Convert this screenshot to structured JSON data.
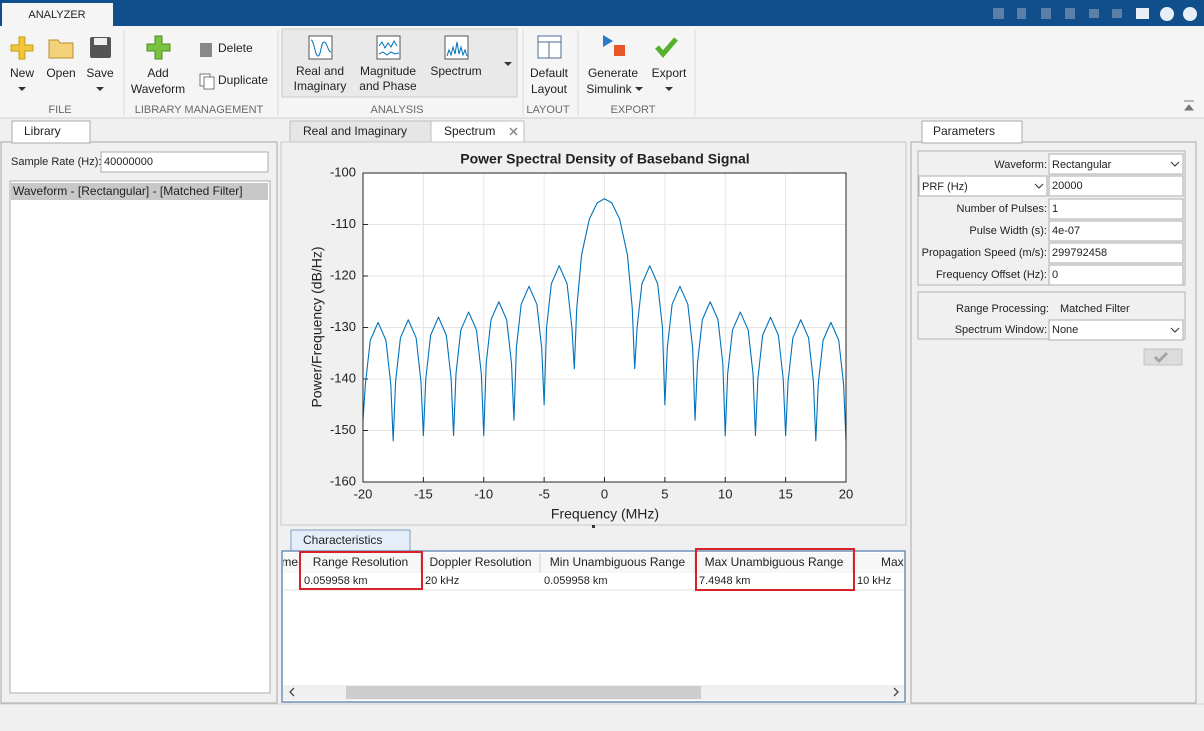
{
  "toolstrip": {
    "tab": "ANALYZER",
    "file": {
      "label": "FILE",
      "new": "New",
      "open": "Open",
      "save": "Save"
    },
    "library_management": {
      "label": "LIBRARY MANAGEMENT",
      "add_waveform": [
        "Add",
        "Waveform"
      ],
      "delete": "Delete",
      "duplicate": "Duplicate"
    },
    "analysis": {
      "label": "ANALYSIS",
      "real_imag": [
        "Real and",
        "Imaginary"
      ],
      "mag_phase": [
        "Magnitude",
        "and Phase"
      ],
      "spectrum": "Spectrum"
    },
    "layout": {
      "label": "LAYOUT",
      "default_layout": [
        "Default",
        "Layout"
      ]
    },
    "export": {
      "label": "EXPORT",
      "generate_simulink": [
        "Generate",
        "Simulink"
      ],
      "export": "Export"
    }
  },
  "library": {
    "tab": "Library",
    "sample_rate_label": "Sample Rate (Hz):",
    "sample_rate": "40000000",
    "items": [
      "Waveform - [Rectangular] - [Matched Filter]"
    ]
  },
  "plot_tabs": [
    "Real and Imaginary",
    "Spectrum"
  ],
  "chart_data": {
    "type": "line",
    "title": "Power Spectral Density of Baseband Signal",
    "x_label": "Frequency (MHz)",
    "y_label": "Power/Frequency (dB/Hz)",
    "x": [
      -20,
      -19.8,
      -19.4,
      -18.75,
      -18.1,
      -17.7,
      -17.5,
      -17.3,
      -16.9,
      -16.25,
      -15.6,
      -15.2,
      -15,
      -14.8,
      -14.4,
      -13.75,
      -13.1,
      -12.7,
      -12.5,
      -12.3,
      -11.9,
      -11.25,
      -10.6,
      -10.2,
      -10,
      -9.8,
      -9.4,
      -8.75,
      -8.1,
      -7.7,
      -7.5,
      -7.3,
      -6.9,
      -6.25,
      -5.6,
      -5.2,
      -5,
      -4.8,
      -4.4,
      -3.75,
      -3.1,
      -2.7,
      -2.5,
      -2.3,
      -1.9,
      -1.25,
      -0.6,
      0,
      0.6,
      1.25,
      1.9,
      2.3,
      2.5,
      2.7,
      3.1,
      3.75,
      4.4,
      4.8,
      5,
      5.2,
      5.6,
      6.25,
      6.9,
      7.3,
      7.5,
      7.7,
      8.1,
      8.75,
      9.4,
      9.8,
      10,
      10.2,
      10.6,
      11.25,
      11.9,
      12.3,
      12.5,
      12.7,
      13.1,
      13.75,
      14.4,
      14.8,
      15,
      15.2,
      15.6,
      16.25,
      16.9,
      17.3,
      17.5,
      17.7,
      18.1,
      18.75,
      19.4,
      19.8,
      20
    ],
    "values": [
      -148,
      -141,
      -132.5,
      -129,
      -132.5,
      -141,
      -152,
      -140.5,
      -132,
      -128.5,
      -132,
      -140.5,
      -151,
      -140,
      -131.5,
      -128,
      -131.5,
      -140,
      -151,
      -139,
      -130.5,
      -127,
      -130.5,
      -139,
      -151,
      -137,
      -128.5,
      -125,
      -128.5,
      -137,
      -148,
      -134,
      -125.5,
      -122,
      -125.5,
      -134,
      -145,
      -130,
      -121.5,
      -118,
      -121.5,
      -130,
      -138,
      -126.3,
      -115.9,
      -108.9,
      -105.8,
      -105,
      -105.8,
      -108.9,
      -115.9,
      -126.3,
      -138,
      -130,
      -121.5,
      -118,
      -121.5,
      -130,
      -145,
      -134,
      -125.5,
      -122,
      -125.5,
      -134,
      -148,
      -137,
      -128.5,
      -125,
      -128.5,
      -137,
      -151,
      -139,
      -130.5,
      -127,
      -130.5,
      -139,
      -151,
      -140,
      -131.5,
      -128,
      -131.5,
      -140,
      -151,
      -140.5,
      -132,
      -128.5,
      -132,
      -140.5,
      -152,
      -141,
      -132.5,
      -129,
      -132.5,
      -141,
      -152
    ],
    "color": "#0072bd",
    "xlim": [
      -20,
      20
    ],
    "ylim": [
      -160,
      -100
    ],
    "xticks": [
      -20,
      -15,
      -10,
      -5,
      0,
      5,
      10,
      15,
      20
    ],
    "yticks": [
      -160,
      -150,
      -140,
      -130,
      -120,
      -110,
      -100
    ],
    "grid": true
  },
  "characteristics": {
    "tab": "Characteristics",
    "columns": [
      "me",
      "Range Resolution",
      "Doppler Resolution",
      "Min Unambiguous Range",
      "Max Unambiguous Range",
      "Max"
    ],
    "rows": [
      [
        "0.059958 km",
        "20 kHz",
        "0.059958 km",
        "7.4948 km",
        "10 kHz"
      ]
    ]
  },
  "parameters": {
    "tab": "Parameters",
    "waveform_label": "Waveform:",
    "waveform": "Rectangular",
    "prf_label": "PRF (Hz)",
    "prf": "20000",
    "fields": [
      {
        "label": "Number of Pulses:",
        "value": "1"
      },
      {
        "label": "Pulse Width (s):",
        "value": "4e-07"
      },
      {
        "label": "Propagation Speed (m/s):",
        "value": "299792458"
      },
      {
        "label": "Frequency Offset (Hz):",
        "value": "0"
      }
    ],
    "range_processing_label": "Range Processing:",
    "range_processing": "Matched Filter",
    "spectrum_window_label": "Spectrum Window:",
    "spectrum_window": "None"
  }
}
